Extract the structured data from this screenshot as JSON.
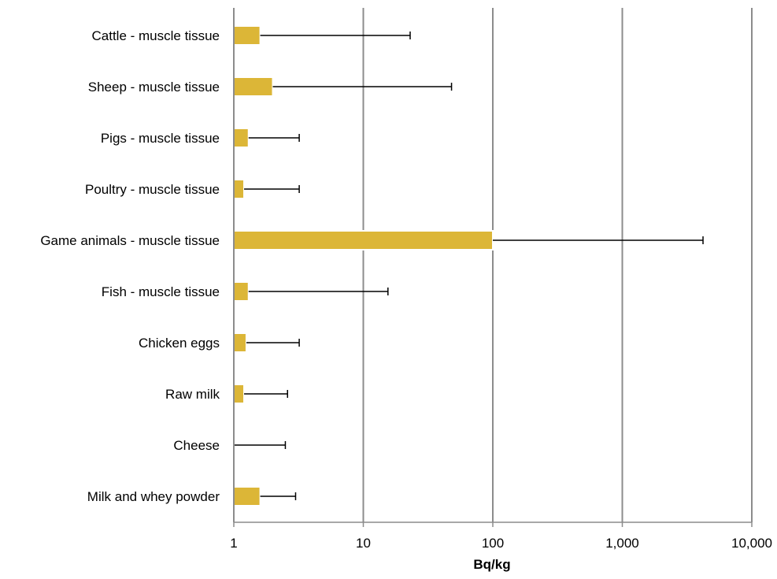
{
  "chart_data": {
    "type": "bar",
    "orientation": "horizontal",
    "title": "",
    "xlabel": "Bq/kg",
    "ylabel": "",
    "x_scale": "log",
    "xlim": [
      1,
      10000
    ],
    "x_ticks": [
      1,
      10,
      100,
      1000,
      10000
    ],
    "x_tick_labels": [
      "1",
      "10",
      "100",
      "1,000",
      "10,000"
    ],
    "grid": "vertical major gridlines",
    "legend": "none",
    "bar_color": "#dcb637",
    "categories": [
      "Cattle - muscle tissue",
      "Sheep - muscle tissue",
      "Pigs - muscle tissue",
      "Poultry - muscle tissue",
      "Game animals - muscle tissue",
      "Fish - muscle tissue",
      "Chicken eggs",
      "Raw milk",
      "Cheese",
      "Milk and whey powder"
    ],
    "values": [
      1.6,
      2.0,
      1.3,
      1.2,
      100,
      1.3,
      1.25,
      1.2,
      1.0,
      1.6
    ],
    "error_upper": [
      23,
      48,
      3.2,
      3.2,
      4200,
      15.5,
      3.2,
      2.6,
      2.5,
      3.0
    ]
  }
}
